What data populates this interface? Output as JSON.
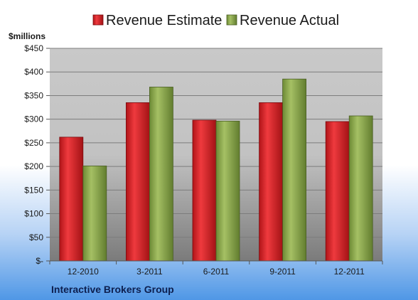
{
  "chart_data": {
    "type": "bar",
    "categories": [
      "12-2010",
      "3-2011",
      "6-2011",
      "9-2011",
      "12-2011"
    ],
    "series": [
      {
        "name": "Revenue Estimate",
        "values": [
          262,
          335,
          298,
          335,
          295
        ],
        "color": "#d8262a"
      },
      {
        "name": "Revenue Actual",
        "values": [
          201,
          368,
          296,
          385,
          307
        ],
        "color": "#8aa74d"
      }
    ],
    "ylabel": "$millions",
    "ylim": [
      0,
      450
    ],
    "y_ticks": [
      {
        "value": 0,
        "label": "$-"
      },
      {
        "value": 50,
        "label": "$50"
      },
      {
        "value": 100,
        "label": "$100"
      },
      {
        "value": 150,
        "label": "$150"
      },
      {
        "value": 200,
        "label": "$200"
      },
      {
        "value": 250,
        "label": "$250"
      },
      {
        "value": 300,
        "label": "$300"
      },
      {
        "value": 350,
        "label": "$350"
      },
      {
        "value": 400,
        "label": "$400"
      },
      {
        "value": 450,
        "label": "$450"
      }
    ],
    "grid": true,
    "legend_position": "top-center",
    "company": "Interactive Brokers Group"
  }
}
